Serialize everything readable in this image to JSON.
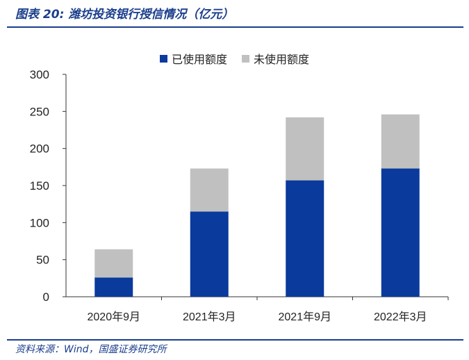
{
  "header": {
    "title": "图表 20:  潍坊投资银行授信情况（亿元）"
  },
  "footer": {
    "source": "资料来源：Wind，国盛证券研究所"
  },
  "colors": {
    "used": "#0a3a9c",
    "unused": "#c0c0c0",
    "accent": "#1a3e8c"
  },
  "chart_data": {
    "type": "bar",
    "stacked": true,
    "categories": [
      "2020年9月",
      "2021年3月",
      "2021年9月",
      "2022年3月"
    ],
    "series": [
      {
        "name": "已使用额度",
        "values": [
          26,
          115,
          157,
          173
        ]
      },
      {
        "name": "未使用额度",
        "values": [
          38,
          58,
          85,
          73
        ]
      }
    ],
    "yticks": [
      "0",
      "50",
      "100",
      "150",
      "200",
      "250",
      "300"
    ],
    "ylim": [
      0,
      300
    ],
    "grid": false,
    "legend": "top-center"
  }
}
